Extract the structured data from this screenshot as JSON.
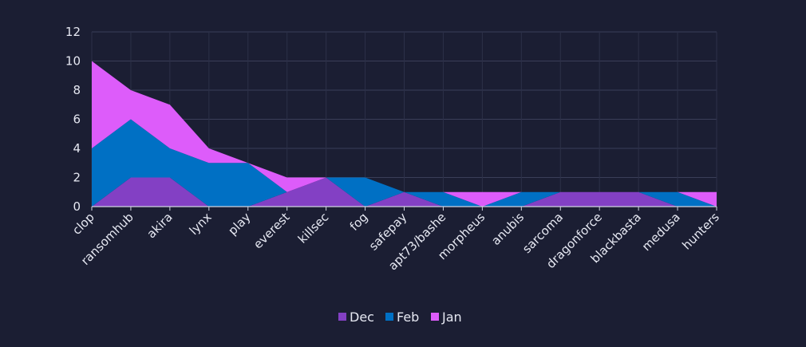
{
  "chart_data": {
    "type": "area",
    "stacked": true,
    "title": "",
    "xlabel": "",
    "ylabel": "",
    "ylim": [
      0,
      12
    ],
    "yticks": [
      0,
      2,
      4,
      6,
      8,
      10,
      12
    ],
    "grid": true,
    "legend_position": "bottom",
    "categories": [
      "clop",
      "ransomhub",
      "akira",
      "lynx",
      "play",
      "everest",
      "killsec",
      "fog",
      "safepay",
      "apt73/bashe",
      "morpheus",
      "anubis",
      "sarcoma",
      "dragonforce",
      "blackbasta",
      "medusa",
      "hunters"
    ],
    "series": [
      {
        "name": "Dec",
        "color": "#8340c4",
        "values": [
          0,
          2,
          2,
          0,
          0,
          1,
          2,
          0,
          1,
          0,
          0,
          0,
          1,
          1,
          1,
          0,
          0
        ]
      },
      {
        "name": "Feb",
        "color": "#0070c4",
        "values": [
          4,
          4,
          2,
          3,
          3,
          0,
          0,
          2,
          0,
          1,
          0,
          1,
          0,
          0,
          0,
          1,
          0
        ]
      },
      {
        "name": "Jan",
        "color": "#dd5cfa",
        "values": [
          6,
          2,
          3,
          1,
          0,
          1,
          0,
          0,
          0,
          0,
          1,
          0,
          0,
          0,
          0,
          0,
          1
        ]
      }
    ]
  }
}
